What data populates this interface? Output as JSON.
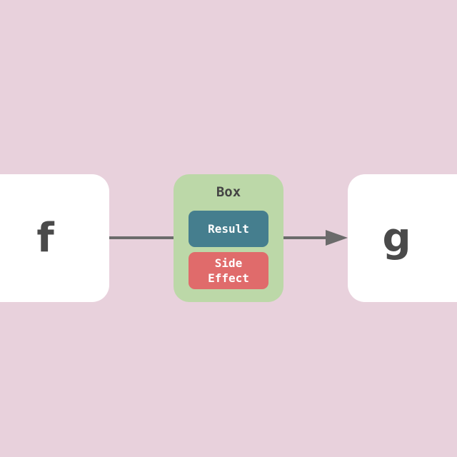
{
  "diagram": {
    "left_node": {
      "label": "f"
    },
    "right_node": {
      "label": "g"
    },
    "box": {
      "title": "Box",
      "result_label": "Result",
      "side_effect_line1": "Side",
      "side_effect_line2": "Effect"
    },
    "colors": {
      "background": "#e8d1dc",
      "node_fill": "#ffffff",
      "box_fill": "#bcd8a8",
      "result_fill": "#457e8e",
      "side_effect_fill": "#e06b6b",
      "connector": "#6b6b6b"
    }
  }
}
